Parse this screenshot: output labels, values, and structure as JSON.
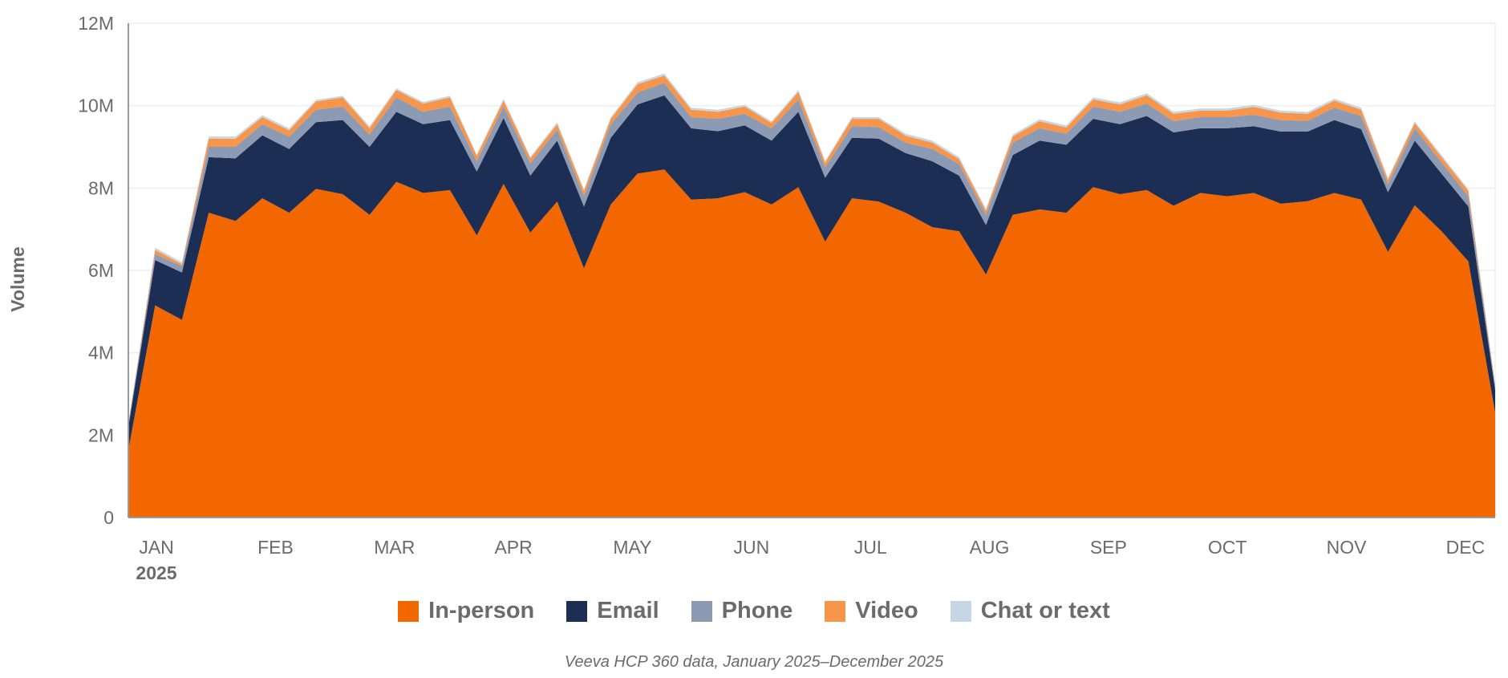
{
  "chart_data": {
    "type": "area",
    "stacked": true,
    "ylabel": "Volume",
    "xlabel": "",
    "ylim": [
      0,
      12000000
    ],
    "yticks": [
      0,
      2000000,
      4000000,
      6000000,
      8000000,
      10000000,
      12000000
    ],
    "ytick_labels": [
      "0",
      "2M",
      "4M",
      "6M",
      "8M",
      "10M",
      "12M"
    ],
    "x_points": 52,
    "x_unit": "week index",
    "month_ticks": [
      {
        "label": "JAN",
        "x": 1.05
      },
      {
        "label": "FEB",
        "x": 5.49
      },
      {
        "label": "MAR",
        "x": 9.93
      },
      {
        "label": "APR",
        "x": 14.37
      },
      {
        "label": "MAY",
        "x": 18.81
      },
      {
        "label": "JUN",
        "x": 23.25
      },
      {
        "label": "JUL",
        "x": 27.69
      },
      {
        "label": "AUG",
        "x": 32.13
      },
      {
        "label": "SEP",
        "x": 36.57
      },
      {
        "label": "OCT",
        "x": 41.01
      },
      {
        "label": "NOV",
        "x": 45.45
      },
      {
        "label": "DEC",
        "x": 49.89
      }
    ],
    "year_label": "2025",
    "grid": true,
    "legend_position": "bottom",
    "series_unit_millions": true,
    "series": [
      {
        "name": "In-person",
        "color": "#F26700",
        "values": [
          1.64,
          5.15,
          4.8,
          7.4,
          7.2,
          7.75,
          7.4,
          7.98,
          7.85,
          7.35,
          8.15,
          7.88,
          7.95,
          6.85,
          8.1,
          6.92,
          7.67,
          6.05,
          7.6,
          8.35,
          8.45,
          7.72,
          7.75,
          7.9,
          7.6,
          8.02,
          6.7,
          7.75,
          7.67,
          7.4,
          7.05,
          6.95,
          5.9,
          7.35,
          7.48,
          7.4,
          8.02,
          7.85,
          7.95,
          7.57,
          7.88,
          7.8,
          7.88,
          7.62,
          7.68,
          7.88,
          7.72,
          6.45,
          7.58,
          6.95,
          6.22,
          2.55
        ]
      },
      {
        "name": "Email",
        "color": "#1C2E54",
        "values": [
          0.56,
          1.1,
          1.15,
          1.35,
          1.52,
          1.53,
          1.55,
          1.62,
          1.8,
          1.65,
          1.7,
          1.67,
          1.7,
          1.55,
          1.6,
          1.38,
          1.48,
          1.5,
          1.62,
          1.68,
          1.8,
          1.73,
          1.63,
          1.62,
          1.55,
          1.83,
          1.55,
          1.47,
          1.53,
          1.45,
          1.6,
          1.35,
          1.2,
          1.45,
          1.67,
          1.65,
          1.66,
          1.7,
          1.8,
          1.78,
          1.57,
          1.65,
          1.62,
          1.75,
          1.69,
          1.77,
          1.71,
          1.45,
          1.57,
          1.4,
          1.33,
          0.55
        ]
      },
      {
        "name": "Phone",
        "color": "#8C9AB3",
        "values": [
          0.05,
          0.15,
          0.15,
          0.25,
          0.28,
          0.27,
          0.3,
          0.3,
          0.33,
          0.3,
          0.35,
          0.3,
          0.33,
          0.25,
          0.28,
          0.3,
          0.27,
          0.25,
          0.33,
          0.29,
          0.3,
          0.27,
          0.3,
          0.28,
          0.3,
          0.3,
          0.25,
          0.28,
          0.28,
          0.25,
          0.3,
          0.28,
          0.25,
          0.3,
          0.3,
          0.27,
          0.3,
          0.3,
          0.3,
          0.27,
          0.27,
          0.27,
          0.28,
          0.28,
          0.26,
          0.3,
          0.32,
          0.2,
          0.3,
          0.27,
          0.25,
          0.08
        ]
      },
      {
        "name": "Video",
        "color": "#F7954A",
        "values": [
          0.03,
          0.1,
          0.05,
          0.2,
          0.2,
          0.17,
          0.15,
          0.2,
          0.22,
          0.15,
          0.18,
          0.2,
          0.22,
          0.13,
          0.14,
          0.12,
          0.13,
          0.13,
          0.13,
          0.2,
          0.18,
          0.18,
          0.17,
          0.18,
          0.13,
          0.18,
          0.12,
          0.18,
          0.2,
          0.17,
          0.15,
          0.12,
          0.1,
          0.15,
          0.17,
          0.15,
          0.17,
          0.18,
          0.2,
          0.18,
          0.16,
          0.16,
          0.19,
          0.18,
          0.17,
          0.17,
          0.15,
          0.1,
          0.13,
          0.13,
          0.13,
          0.04
        ]
      },
      {
        "name": "Chat or text",
        "color": "#C6D6E4",
        "values": [
          0.02,
          0.05,
          0.05,
          0.05,
          0.05,
          0.05,
          0.05,
          0.04,
          0.04,
          0.05,
          0.04,
          0.04,
          0.04,
          0.04,
          0.05,
          0.04,
          0.05,
          0.04,
          0.04,
          0.05,
          0.05,
          0.05,
          0.05,
          0.04,
          0.04,
          0.05,
          0.04,
          0.04,
          0.04,
          0.05,
          0.05,
          0.05,
          0.05,
          0.05,
          0.05,
          0.05,
          0.05,
          0.05,
          0.05,
          0.05,
          0.05,
          0.05,
          0.05,
          0.05,
          0.05,
          0.05,
          0.05,
          0.05,
          0.04,
          0.05,
          0.04,
          0.02
        ]
      }
    ],
    "caption": "Veeva HCP 360 data, January 2025–December 2025"
  }
}
